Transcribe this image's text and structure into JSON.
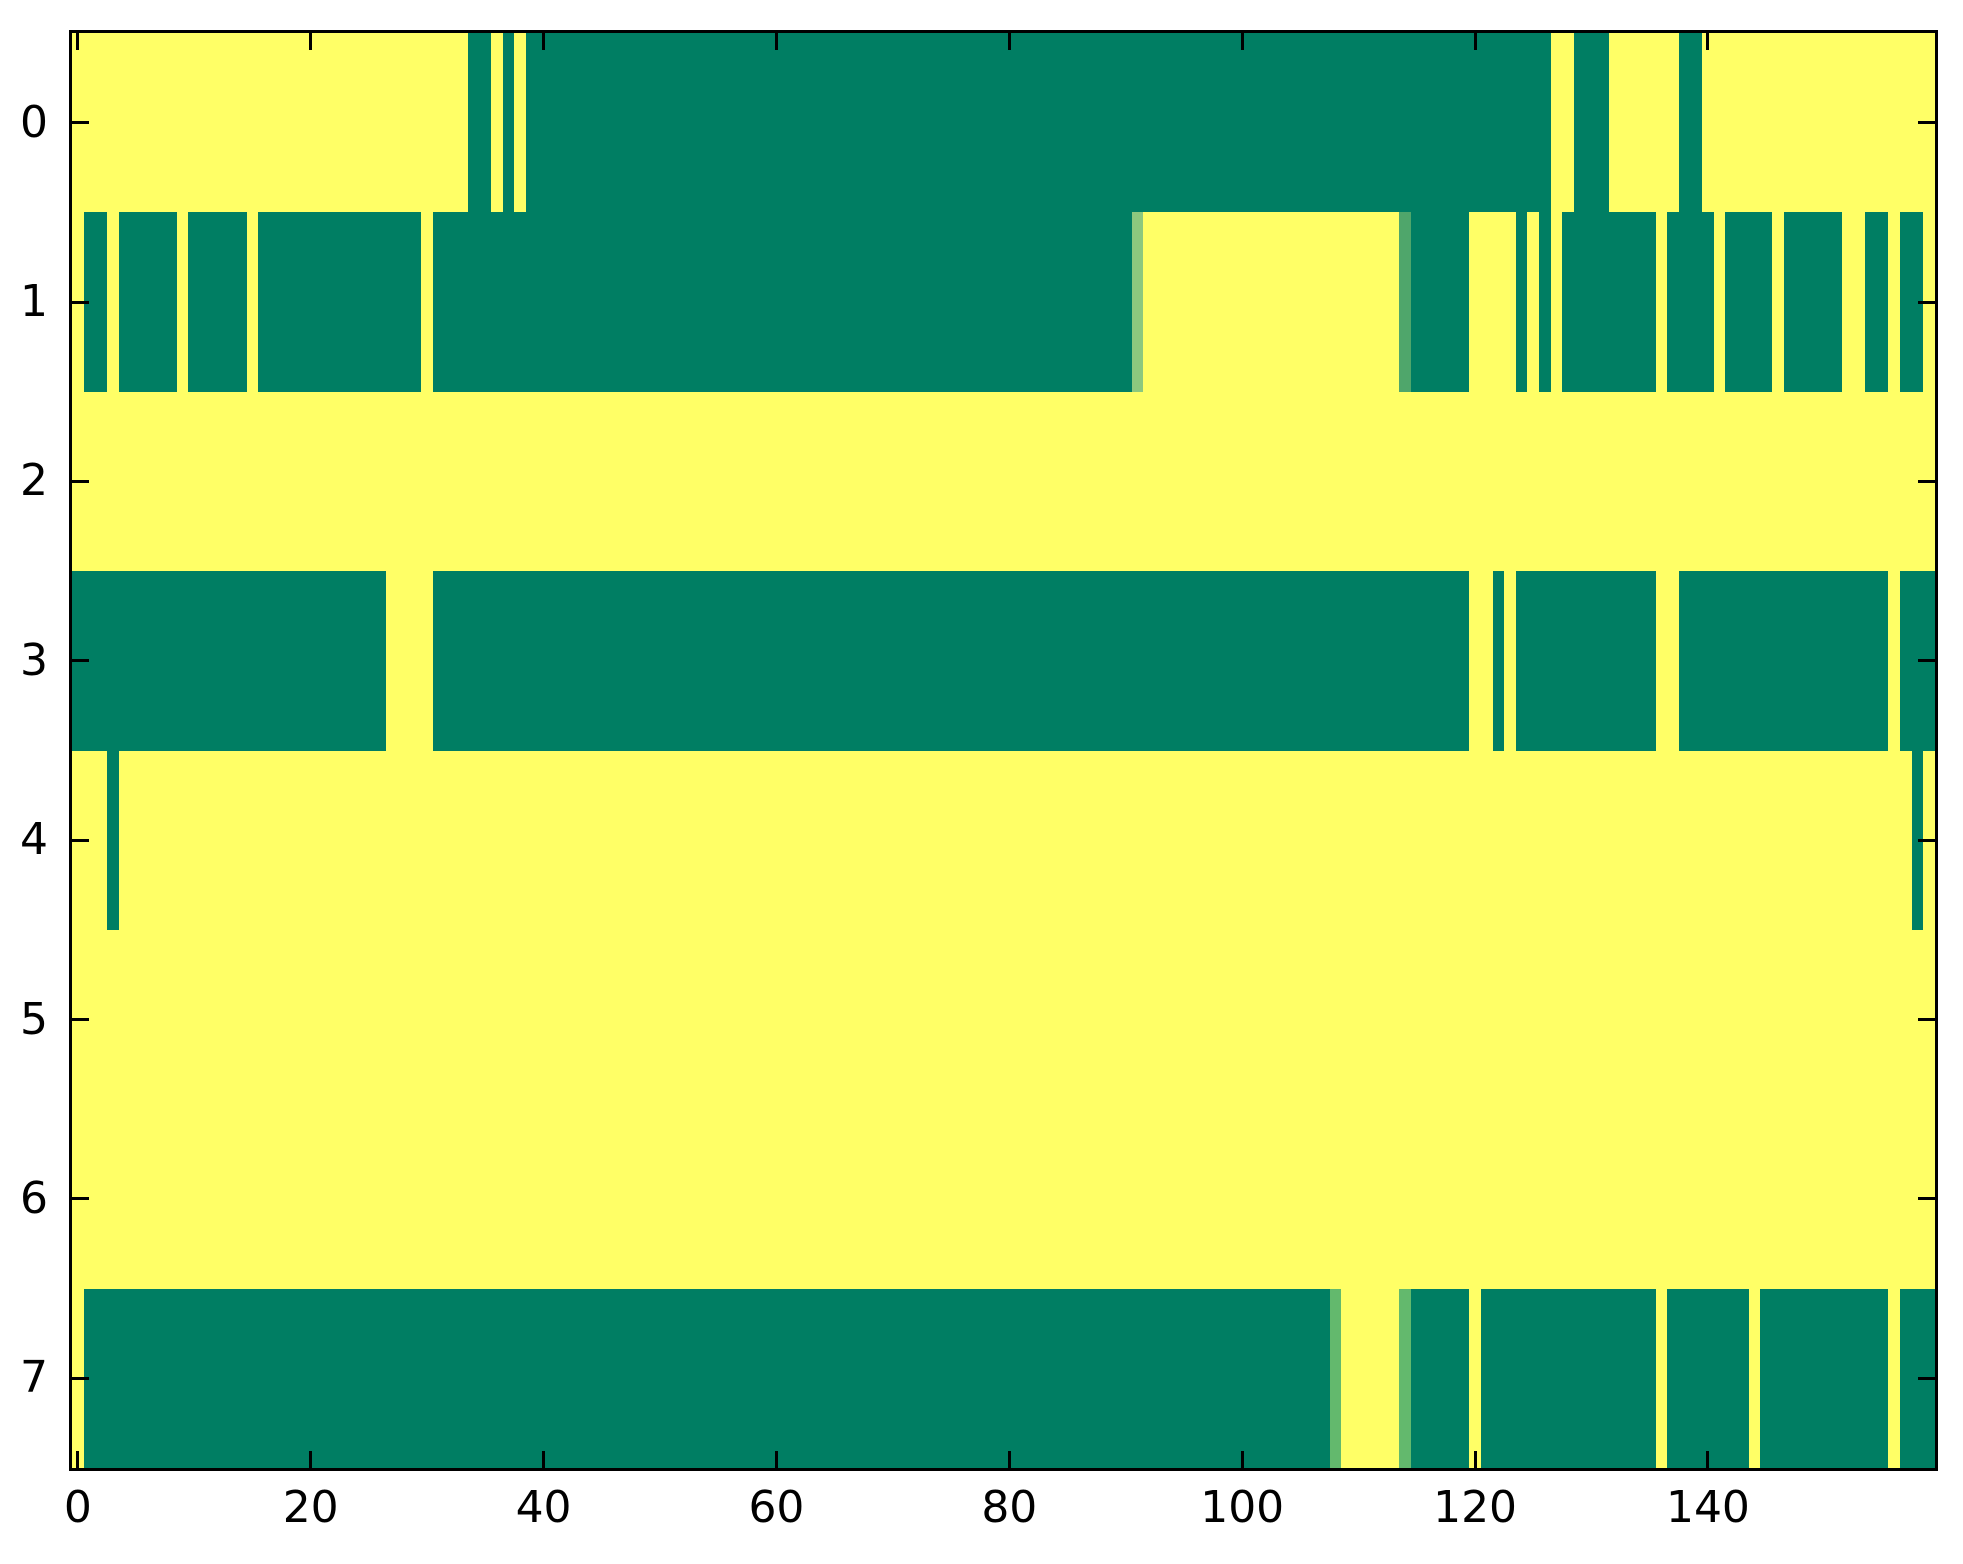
{
  "chart_data": {
    "type": "heatmap",
    "title": "",
    "xlabel": "",
    "ylabel": "",
    "n_rows": 8,
    "n_cols": 160,
    "x_range": [
      -0.5,
      159.5
    ],
    "x_ticks": [
      0,
      20,
      40,
      60,
      80,
      100,
      120,
      140
    ],
    "y_tick_labels": [
      "0",
      "1",
      "2",
      "3",
      "4",
      "5",
      "6",
      "7"
    ],
    "grid": false,
    "legend": false,
    "colormap": "summer",
    "colors": {
      "g": "#007E63",
      "y": "#FFFF66",
      "p": "#8CC87E",
      "m": "#4FA66B",
      "n": "#63B96D"
    },
    "rows": [
      {
        "label": "0",
        "segments": [
          [
            0,
            34,
            "y"
          ],
          [
            34,
            36,
            "g"
          ],
          [
            36,
            37,
            "y"
          ],
          [
            37,
            38,
            "g"
          ],
          [
            38,
            39,
            "y"
          ],
          [
            39,
            127,
            "g"
          ],
          [
            127,
            129,
            "y"
          ],
          [
            129,
            132,
            "g"
          ],
          [
            132,
            138,
            "y"
          ],
          [
            138,
            140,
            "g"
          ],
          [
            140,
            160,
            "y"
          ]
        ]
      },
      {
        "label": "1",
        "segments": [
          [
            0,
            1,
            "y"
          ],
          [
            1,
            3,
            "g"
          ],
          [
            3,
            4,
            "y"
          ],
          [
            4,
            9,
            "g"
          ],
          [
            9,
            10,
            "y"
          ],
          [
            10,
            15,
            "g"
          ],
          [
            15,
            16,
            "y"
          ],
          [
            16,
            30,
            "g"
          ],
          [
            30,
            31,
            "y"
          ],
          [
            31,
            91,
            "g"
          ],
          [
            91,
            92,
            "p"
          ],
          [
            92,
            114,
            "y"
          ],
          [
            114,
            115,
            "m"
          ],
          [
            115,
            120,
            "g"
          ],
          [
            120,
            124,
            "y"
          ],
          [
            124,
            125,
            "g"
          ],
          [
            125,
            126,
            "y"
          ],
          [
            126,
            127,
            "g"
          ],
          [
            127,
            128,
            "y"
          ],
          [
            128,
            136,
            "g"
          ],
          [
            136,
            137,
            "y"
          ],
          [
            137,
            141,
            "g"
          ],
          [
            141,
            142,
            "y"
          ],
          [
            142,
            146,
            "g"
          ],
          [
            146,
            147,
            "y"
          ],
          [
            147,
            152,
            "g"
          ],
          [
            152,
            154,
            "y"
          ],
          [
            154,
            156,
            "g"
          ],
          [
            156,
            157,
            "y"
          ],
          [
            157,
            159,
            "g"
          ],
          [
            159,
            160,
            "y"
          ]
        ]
      },
      {
        "label": "2",
        "segments": [
          [
            0,
            160,
            "y"
          ]
        ]
      },
      {
        "label": "3",
        "segments": [
          [
            0,
            27,
            "g"
          ],
          [
            27,
            31,
            "y"
          ],
          [
            31,
            120,
            "g"
          ],
          [
            120,
            122,
            "y"
          ],
          [
            122,
            123,
            "g"
          ],
          [
            123,
            124,
            "y"
          ],
          [
            124,
            136,
            "g"
          ],
          [
            136,
            138,
            "y"
          ],
          [
            138,
            156,
            "g"
          ],
          [
            156,
            157,
            "y"
          ],
          [
            157,
            160,
            "g"
          ]
        ]
      },
      {
        "label": "4",
        "segments": [
          [
            0,
            3,
            "y"
          ],
          [
            3,
            4,
            "g"
          ],
          [
            4,
            158,
            "y"
          ],
          [
            158,
            159,
            "g"
          ],
          [
            159,
            160,
            "y"
          ]
        ]
      },
      {
        "label": "5",
        "segments": [
          [
            0,
            160,
            "y"
          ]
        ]
      },
      {
        "label": "6",
        "segments": [
          [
            0,
            160,
            "y"
          ]
        ]
      },
      {
        "label": "7",
        "segments": [
          [
            0,
            1,
            "y"
          ],
          [
            1,
            108,
            "g"
          ],
          [
            108,
            109,
            "n"
          ],
          [
            109,
            114,
            "y"
          ],
          [
            114,
            115,
            "n"
          ],
          [
            115,
            120,
            "g"
          ],
          [
            120,
            121,
            "y"
          ],
          [
            121,
            136,
            "g"
          ],
          [
            136,
            137,
            "y"
          ],
          [
            137,
            144,
            "g"
          ],
          [
            144,
            145,
            "y"
          ],
          [
            145,
            156,
            "g"
          ],
          [
            156,
            157,
            "y"
          ],
          [
            157,
            160,
            "g"
          ]
        ]
      }
    ]
  }
}
